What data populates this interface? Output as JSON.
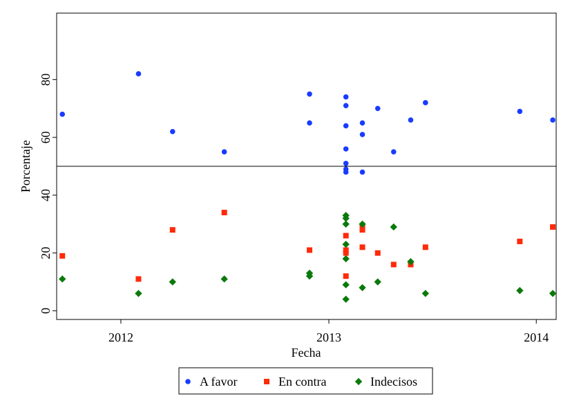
{
  "chart_data": {
    "type": "scatter",
    "xlabel": "Fecha",
    "ylabel": "Porcentaje",
    "x_ticks": [
      "2012",
      "2013",
      "2014"
    ],
    "y_ticks": [
      "0",
      "20",
      "40",
      "60",
      "80"
    ],
    "ylim": [
      -3,
      103
    ],
    "xlim": [
      "2011-09-10",
      "2014-02-05"
    ],
    "reference_line_y": 50,
    "grid": false,
    "legend_position": "bottom",
    "series": [
      {
        "name": "A favor",
        "marker": "circle",
        "color": "#1a3cff",
        "points": [
          {
            "x": "2011-09-20",
            "y": 68
          },
          {
            "x": "2012-02-01",
            "y": 82
          },
          {
            "x": "2012-04-01",
            "y": 62
          },
          {
            "x": "2012-07-01",
            "y": 55
          },
          {
            "x": "2012-11-28",
            "y": 75
          },
          {
            "x": "2012-11-28",
            "y": 65
          },
          {
            "x": "2013-01-31",
            "y": 74
          },
          {
            "x": "2013-01-31",
            "y": 71
          },
          {
            "x": "2013-01-31",
            "y": 64
          },
          {
            "x": "2013-01-31",
            "y": 56
          },
          {
            "x": "2013-01-31",
            "y": 51
          },
          {
            "x": "2013-01-31",
            "y": 49
          },
          {
            "x": "2013-01-31",
            "y": 48
          },
          {
            "x": "2013-03-01",
            "y": 65
          },
          {
            "x": "2013-03-01",
            "y": 61
          },
          {
            "x": "2013-03-01",
            "y": 48
          },
          {
            "x": "2013-03-28",
            "y": 70
          },
          {
            "x": "2013-04-25",
            "y": 55
          },
          {
            "x": "2013-05-25",
            "y": 66
          },
          {
            "x": "2013-06-20",
            "y": 72
          },
          {
            "x": "2013-12-03",
            "y": 69
          },
          {
            "x": "2014-01-30",
            "y": 66
          }
        ]
      },
      {
        "name": "En contra",
        "marker": "square",
        "color": "#ff2a0a",
        "points": [
          {
            "x": "2011-09-20",
            "y": 19
          },
          {
            "x": "2012-02-01",
            "y": 11
          },
          {
            "x": "2012-04-01",
            "y": 28
          },
          {
            "x": "2012-07-01",
            "y": 34
          },
          {
            "x": "2012-11-28",
            "y": 21
          },
          {
            "x": "2013-01-31",
            "y": 26
          },
          {
            "x": "2013-01-31",
            "y": 21
          },
          {
            "x": "2013-01-31",
            "y": 20
          },
          {
            "x": "2013-01-31",
            "y": 12
          },
          {
            "x": "2013-03-01",
            "y": 29
          },
          {
            "x": "2013-03-01",
            "y": 28
          },
          {
            "x": "2013-03-01",
            "y": 22
          },
          {
            "x": "2013-03-28",
            "y": 20
          },
          {
            "x": "2013-04-25",
            "y": 16
          },
          {
            "x": "2013-05-25",
            "y": 16
          },
          {
            "x": "2013-06-20",
            "y": 22
          },
          {
            "x": "2013-12-03",
            "y": 24
          },
          {
            "x": "2014-01-30",
            "y": 29
          }
        ]
      },
      {
        "name": "Indecisos",
        "marker": "diamond",
        "color": "#0a7a0a",
        "points": [
          {
            "x": "2011-09-20",
            "y": 11
          },
          {
            "x": "2012-02-01",
            "y": 6
          },
          {
            "x": "2012-04-01",
            "y": 10
          },
          {
            "x": "2012-07-01",
            "y": 11
          },
          {
            "x": "2012-11-28",
            "y": 13
          },
          {
            "x": "2012-11-28",
            "y": 12
          },
          {
            "x": "2013-01-31",
            "y": 33
          },
          {
            "x": "2013-01-31",
            "y": 32
          },
          {
            "x": "2013-01-31",
            "y": 30
          },
          {
            "x": "2013-01-31",
            "y": 23
          },
          {
            "x": "2013-01-31",
            "y": 18
          },
          {
            "x": "2013-01-31",
            "y": 9
          },
          {
            "x": "2013-01-31",
            "y": 4
          },
          {
            "x": "2013-03-01",
            "y": 30
          },
          {
            "x": "2013-03-01",
            "y": 8
          },
          {
            "x": "2013-03-28",
            "y": 10
          },
          {
            "x": "2013-04-25",
            "y": 29
          },
          {
            "x": "2013-05-25",
            "y": 17
          },
          {
            "x": "2013-06-20",
            "y": 6
          },
          {
            "x": "2013-12-03",
            "y": 7
          },
          {
            "x": "2014-01-30",
            "y": 6
          }
        ]
      }
    ]
  }
}
